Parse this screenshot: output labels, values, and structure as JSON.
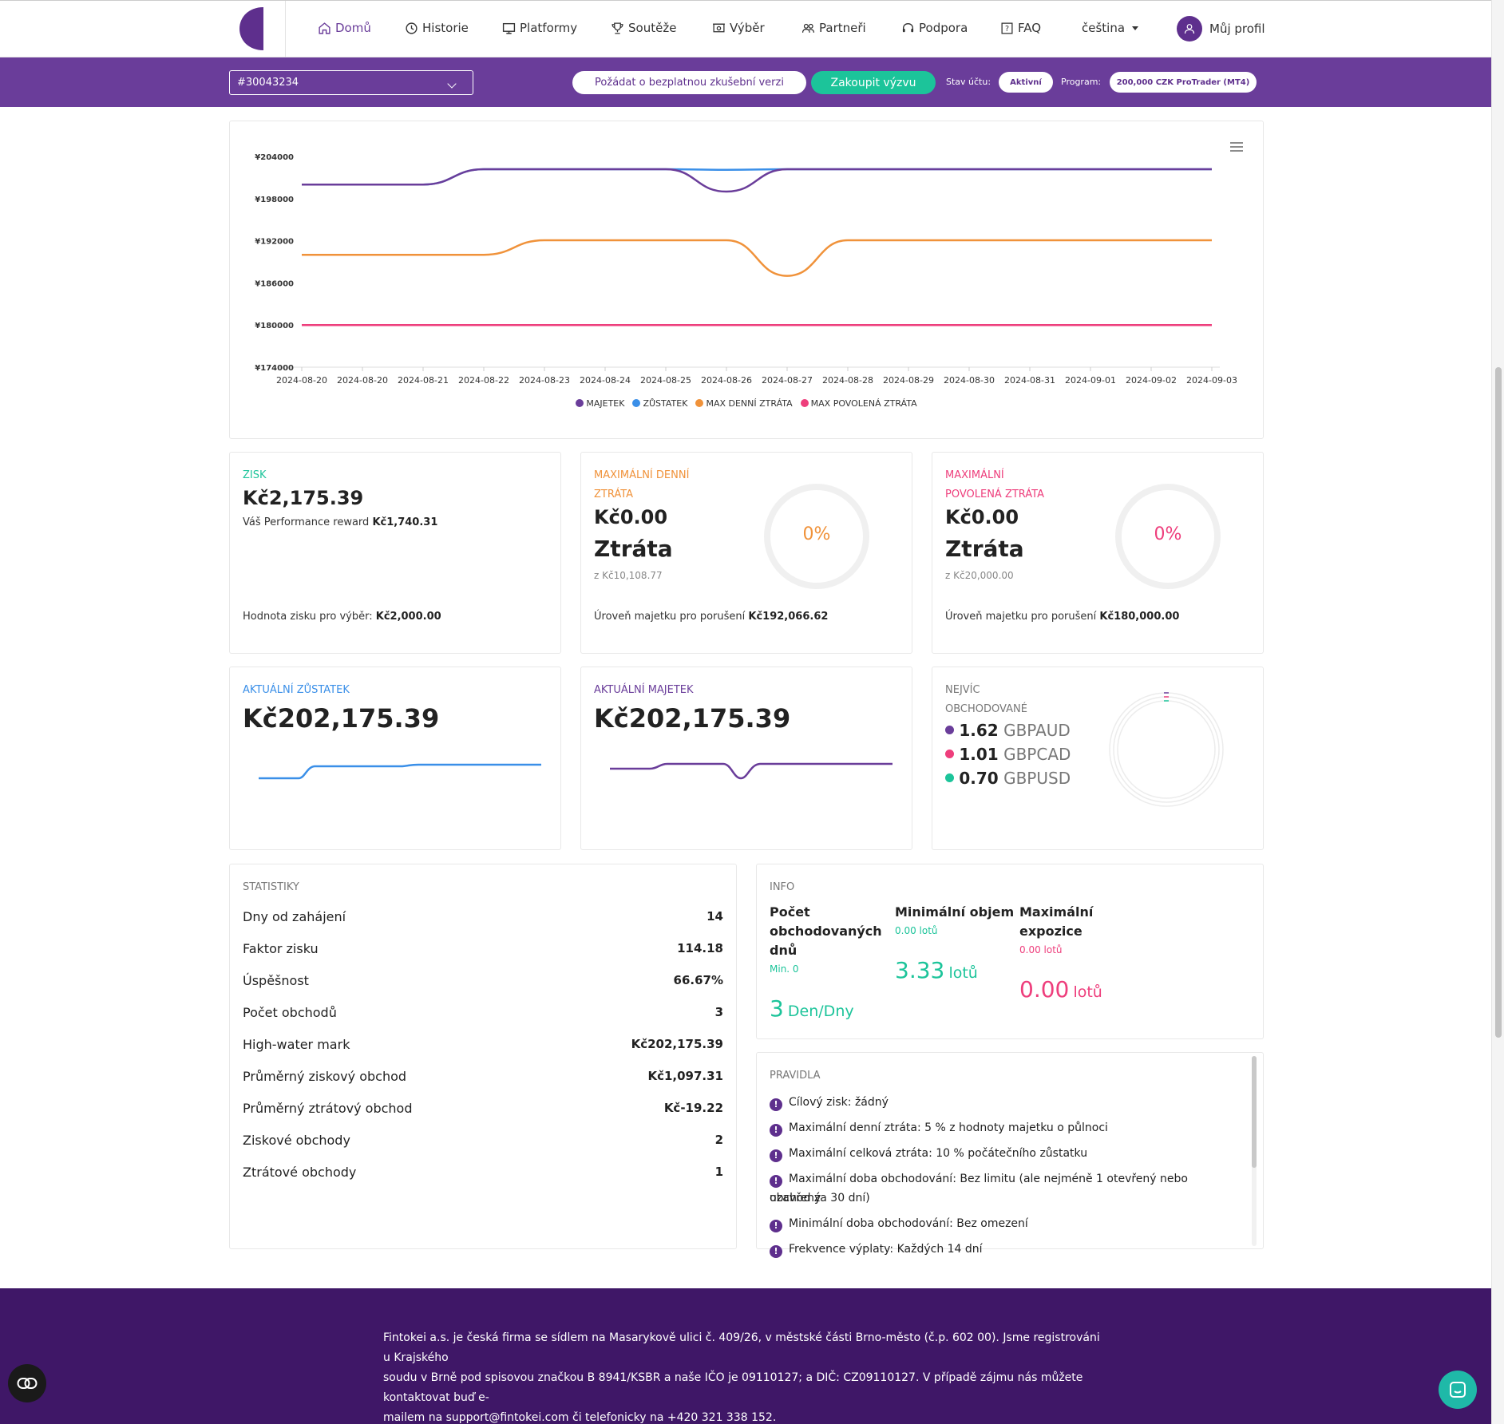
{
  "nav": {
    "items": [
      {
        "label": "Domů",
        "icon": "home-icon"
      },
      {
        "label": "Historie",
        "icon": "clock-icon"
      },
      {
        "label": "Platformy",
        "icon": "monitor-icon"
      },
      {
        "label": "Soutěže",
        "icon": "trophy-icon"
      },
      {
        "label": "Výběr",
        "icon": "withdraw-icon"
      },
      {
        "label": "Partneři",
        "icon": "users-icon"
      },
      {
        "label": "Podpora",
        "icon": "headset-icon"
      },
      {
        "label": "FAQ",
        "icon": "faq-icon"
      }
    ],
    "language": "čeština",
    "profile": "Můj profil"
  },
  "account_bar": {
    "account": "#30043234",
    "free_trial": "Požádat o bezplatnou zkušební verzi",
    "buy": "Zakoupit výzvu",
    "status_label": "Stav účtu:",
    "status": "Aktivní",
    "program_label": "Program:",
    "program": "200,000 CZK ProTrader (MT4)"
  },
  "chart_data": {
    "type": "line",
    "x": [
      "2024-08-20",
      "2024-08-20",
      "2024-08-21",
      "2024-08-22",
      "2024-08-23",
      "2024-08-24",
      "2024-08-25",
      "2024-08-26",
      "2024-08-27",
      "2024-08-28",
      "2024-08-29",
      "2024-08-30",
      "2024-08-31",
      "2024-09-01",
      "2024-09-02",
      "2024-09-03"
    ],
    "y_ticks": [
      "¥204000",
      "¥198000",
      "¥192000",
      "¥186000",
      "¥180000",
      "¥174000"
    ],
    "ylim": [
      174000,
      204000
    ],
    "series": [
      {
        "name": "MAJETEK",
        "color": "#6a3d9a",
        "values": [
          200000,
          200000,
          200000,
          202175,
          202175,
          202175,
          202175,
          199000,
          202175,
          202175,
          202175,
          202175,
          202175,
          202175,
          202175,
          202175
        ]
      },
      {
        "name": "ZŮSTATEK",
        "color": "#3a8fe8",
        "values": [
          200000,
          200000,
          200000,
          202175,
          202175,
          202175,
          202175,
          202100,
          202175,
          202175,
          202175,
          202175,
          202175,
          202175,
          202175,
          202175
        ]
      },
      {
        "name": "MAX DENNÍ ZTRÁTA",
        "color": "#f0923a",
        "values": [
          190000,
          190000,
          190000,
          190000,
          192066,
          192066,
          192066,
          192066,
          187000,
          192066,
          192066,
          192066,
          192066,
          192066,
          192066,
          192066
        ]
      },
      {
        "name": "MAX POVOLENÁ ZTRÁTA",
        "color": "#ee3e7c",
        "values": [
          180000,
          180000,
          180000,
          180000,
          180000,
          180000,
          180000,
          180000,
          180000,
          180000,
          180000,
          180000,
          180000,
          180000,
          180000,
          180000
        ]
      }
    ],
    "legend": "bottom",
    "grid": false
  },
  "profit": {
    "label": "ZISK",
    "value": "Kč2,175.39",
    "reward_prefix": "Váš Performance reward",
    "reward": "Kč1,740.31",
    "withdraw_prefix": "Hodnota zisku pro výběr:",
    "withdraw": "Kč2,000.00"
  },
  "daily_loss": {
    "label1": "MAXIMÁLNÍ DENNÍ",
    "label2": "ZTRÁTA",
    "value": "Kč0.00",
    "word": "Ztráta",
    "of": "z Kč10,108.77",
    "percent": "0%",
    "breach_prefix": "Úroveň majetku pro porušení",
    "breach": "Kč192,066.62",
    "color": "#f0923a"
  },
  "max_loss": {
    "label1": "MAXIMÁLNÍ",
    "label2": "POVOLENÁ ZTRÁTA",
    "value": "Kč0.00",
    "word": "Ztráta",
    "of": "z Kč20,000.00",
    "percent": "0%",
    "breach_prefix": "Úroveň majetku pro porušení",
    "breach": "Kč180,000.00",
    "color": "#ee3e7c"
  },
  "balance": {
    "label": "AKTUÁLNÍ ZŮSTATEK",
    "value": "Kč202,175.39"
  },
  "equity": {
    "label": "AKTUÁLNÍ MAJETEK",
    "value": "Kč202,175.39"
  },
  "most_traded": {
    "label1": "NEJVÍC",
    "label2": "OBCHODOVANÉ",
    "items": [
      {
        "value": "1.62",
        "pair": "GBPAUD",
        "color": "#6a3d9a"
      },
      {
        "value": "1.01",
        "pair": "GBPCAD",
        "color": "#ee3e7c"
      },
      {
        "value": "0.70",
        "pair": "GBPUSD",
        "color": "#1cc49a"
      }
    ]
  },
  "stats": {
    "label": "STATISTIKY",
    "rows": [
      {
        "k": "Dny od zahájení",
        "v": "14"
      },
      {
        "k": "Faktor zisku",
        "v": "114.18"
      },
      {
        "k": "Úspěšnost",
        "v": "66.67%"
      },
      {
        "k": "Počet obchodů",
        "v": "3"
      },
      {
        "k": "High-water mark",
        "v": "Kč202,175.39"
      },
      {
        "k": "Průměrný ziskový obchod",
        "v": "Kč1,097.31"
      },
      {
        "k": "Průměrný ztrátový obchod",
        "v": "Kč-19.22"
      },
      {
        "k": "Ziskové obchody",
        "v": "2"
      },
      {
        "k": "Ztrátové obchody",
        "v": "1"
      }
    ]
  },
  "info": {
    "label": "INFO",
    "days": {
      "title1": "Počet",
      "title2": "obchodovaných",
      "title3": "dnů",
      "min": "Min. 0",
      "value": "3",
      "unit": "Den/Dny"
    },
    "volume": {
      "title": "Minimální objem",
      "min": "0.00 lotů",
      "value": "3.33",
      "unit": "lotů"
    },
    "exposure": {
      "title1": "Maximální",
      "title2": "expozice",
      "min": "0.00 lotů",
      "value": "0.00",
      "unit": "lotů"
    }
  },
  "rules": {
    "label": "PRAVIDLA",
    "items": [
      "Cílový zisk: žádný",
      "Maximální denní ztráta: 5 % z hodnoty majetku o půlnoci",
      "Maximální celková ztráta: 10 % počátečního zůstatku",
      "Maximální doba obchodování: Bez limitu (ale nejméně 1 otevřený nebo uzavřený",
      "obchod za 30 dní)",
      "Minimální doba obchodování: Bez omezení",
      "Frekvence výplaty: Každých 14 dní"
    ]
  },
  "footer": {
    "line1": "Fintokei a.s. je česká firma se sídlem na Masarykově ulici č. 409/26, v městské části Brno-město (č.p. 602 00). Jsme registrováni u Krajského",
    "line2": "soudu v Brně pod spisovou značkou B 8941/KSBR a naše IČO je 09110127; a DIČ: CZ09110127. V případě zájmu nás můžete kontaktovat buď e-",
    "line3": "mailem na support@fintokei.com či telefonicky na +420 321 338 152."
  },
  "colors": {
    "brand": "#6a3d9a",
    "accent": "#1cc49a",
    "footer": "#3f1767"
  }
}
